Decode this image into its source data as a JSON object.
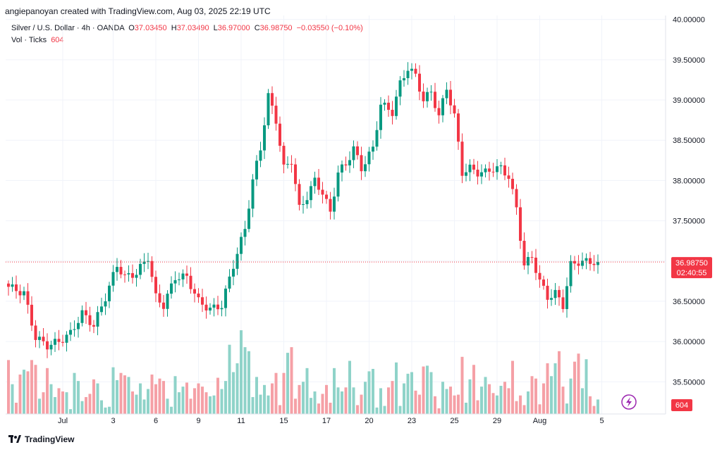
{
  "header": {
    "attribution": "angiepanoyan created with TradingView.com, Aug 03, 2025 22:19 UTC"
  },
  "legend": {
    "symbol": "Silver / U.S. Dollar · 4h · OANDA",
    "o_label": "O",
    "o_value": "37.03450",
    "h_label": "H",
    "h_value": "37.03490",
    "l_label": "L",
    "l_value": "36.97000",
    "c_label": "C",
    "c_value": "36.98750",
    "change": "−0.03550 (−0.10%)",
    "vol_label": "Vol · Ticks",
    "vol_value": "604"
  },
  "price_badge": {
    "price": "36.98750",
    "countdown": "02:40:55"
  },
  "volume_badge": "604",
  "footer": {
    "brand": "TradingView"
  },
  "colors": {
    "up": "#089981",
    "down": "#f23645",
    "up_vol": "#8fd3c9",
    "down_vol": "#f5a0a6"
  },
  "chart_data": {
    "type": "candlestick",
    "y_axis": {
      "min": 35.1,
      "max": 40.05,
      "ticks": [
        "40.00000",
        "39.50000",
        "39.00000",
        "38.50000",
        "38.00000",
        "37.50000",
        "37.00000",
        "36.50000",
        "36.00000",
        "35.50000"
      ],
      "tick_values": [
        40.0,
        39.5,
        39.0,
        38.5,
        38.0,
        37.5,
        37.0,
        36.5,
        36.0,
        35.5
      ]
    },
    "x_axis": {
      "labels": [
        "Jul",
        "3",
        "6",
        "9",
        "11",
        "15",
        "17",
        "20",
        "23",
        "25",
        "29",
        "Aug",
        "5"
      ],
      "label_index": [
        14,
        27,
        38,
        49,
        60,
        71,
        82,
        93,
        104,
        115,
        126,
        137,
        153
      ]
    },
    "last_price": 36.9875,
    "anchors": [
      [
        0,
        36.68
      ],
      [
        4,
        36.6
      ],
      [
        7,
        36.05
      ],
      [
        10,
        35.95
      ],
      [
        13,
        36.0
      ],
      [
        16,
        36.1
      ],
      [
        19,
        36.35
      ],
      [
        22,
        36.2
      ],
      [
        25,
        36.55
      ],
      [
        28,
        36.95
      ],
      [
        30,
        36.8
      ],
      [
        33,
        36.85
      ],
      [
        36,
        37.05
      ],
      [
        38,
        36.55
      ],
      [
        40,
        36.45
      ],
      [
        43,
        36.8
      ],
      [
        46,
        36.8
      ],
      [
        49,
        36.5
      ],
      [
        52,
        36.4
      ],
      [
        55,
        36.45
      ],
      [
        58,
        36.95
      ],
      [
        61,
        37.4
      ],
      [
        63,
        38.0
      ],
      [
        65,
        38.4
      ],
      [
        67,
        39.05
      ],
      [
        69,
        38.75
      ],
      [
        71,
        38.15
      ],
      [
        73,
        38.25
      ],
      [
        75,
        37.65
      ],
      [
        77,
        37.8
      ],
      [
        79,
        38.0
      ],
      [
        81,
        37.85
      ],
      [
        83,
        37.6
      ],
      [
        85,
        38.1
      ],
      [
        87,
        38.2
      ],
      [
        89,
        38.4
      ],
      [
        91,
        38.15
      ],
      [
        94,
        38.4
      ],
      [
        96,
        38.95
      ],
      [
        99,
        38.85
      ],
      [
        101,
        39.2
      ],
      [
        103,
        39.4
      ],
      [
        105,
        39.3
      ],
      [
        107,
        39.0
      ],
      [
        109,
        39.1
      ],
      [
        111,
        38.8
      ],
      [
        113,
        39.15
      ],
      [
        115,
        38.8
      ],
      [
        117,
        38.1
      ],
      [
        119,
        38.15
      ],
      [
        121,
        38.1
      ],
      [
        123,
        38.1
      ],
      [
        125,
        38.15
      ],
      [
        127,
        38.15
      ],
      [
        129,
        38.05
      ],
      [
        131,
        37.65
      ],
      [
        133,
        36.95
      ],
      [
        135,
        37.05
      ],
      [
        137,
        36.75
      ],
      [
        139,
        36.55
      ],
      [
        141,
        36.6
      ],
      [
        143,
        36.45
      ],
      [
        145,
        36.95
      ],
      [
        147,
        36.99
      ]
    ],
    "volumes": [
      35.77,
      35.47,
      35.24,
      35.59,
      35.65,
      35.63,
      35.77,
      35.71,
      35.29,
      35.37,
      35.67,
      35.47,
      35.31,
      35.42,
      35.38,
      35.37,
      35.16,
      35.61,
      35.51,
      35.26,
      35.31,
      35.35,
      35.53,
      35.48,
      35.27,
      35.18,
      35.19,
      35.68,
      35.52,
      35.61,
      35.58,
      35.56,
      35.38,
      35.34,
      35.48,
      35.28,
      35.41,
      35.59,
      35.47,
      35.54,
      35.51,
      35.29,
      35.19,
      35.57,
      35.37,
      35.44,
      35.49,
      35.29,
      35.42,
      35.48,
      35.44,
      35.37,
      35.32,
      35.33,
      35.55,
      35.41,
      35.51,
      35.96,
      35.62,
      35.73,
      36.14,
      35.93,
      35.88,
      35.31,
      35.56,
      35.34,
      35.46,
      35.33,
      35.48,
      35.61,
      35.21,
      35.61,
      35.86,
      35.93,
      35.29,
      35.46,
      35.5,
      35.67,
      35.3,
      35.38,
      35.23,
      35.35,
      35.46,
      35.24,
      35.67,
      35.43,
      35.38,
      35.43,
      35.76,
      35.43,
      35.21,
      35.34,
      35.5,
      35.63,
      35.66,
      35.18,
      35.42,
      35.2,
      35.43,
      35.51,
      35.74,
      35.2,
      35.48,
      35.6,
      35.62,
      35.39,
      35.34,
      35.69,
      35.7,
      35.62,
      35.32,
      35.17,
      35.5,
      35.41,
      35.44,
      35.33,
      35.34,
      35.81,
      35.24,
      35.53,
      35.71,
      35.27,
      35.44,
      35.56,
      35.47,
      35.36,
      35.33,
      35.45,
      35.5,
      35.42,
      35.76,
      35.26,
      35.33,
      35.21,
      35.38,
      35.57,
      35.54,
      35.22,
      35.48,
      35.73,
      35.57,
      35.73,
      35.88,
      35.44,
      35.23,
      35.54,
      35.75,
      35.85,
      35.42,
      35.78,
      35.32,
      35.2,
      35.28
    ]
  }
}
